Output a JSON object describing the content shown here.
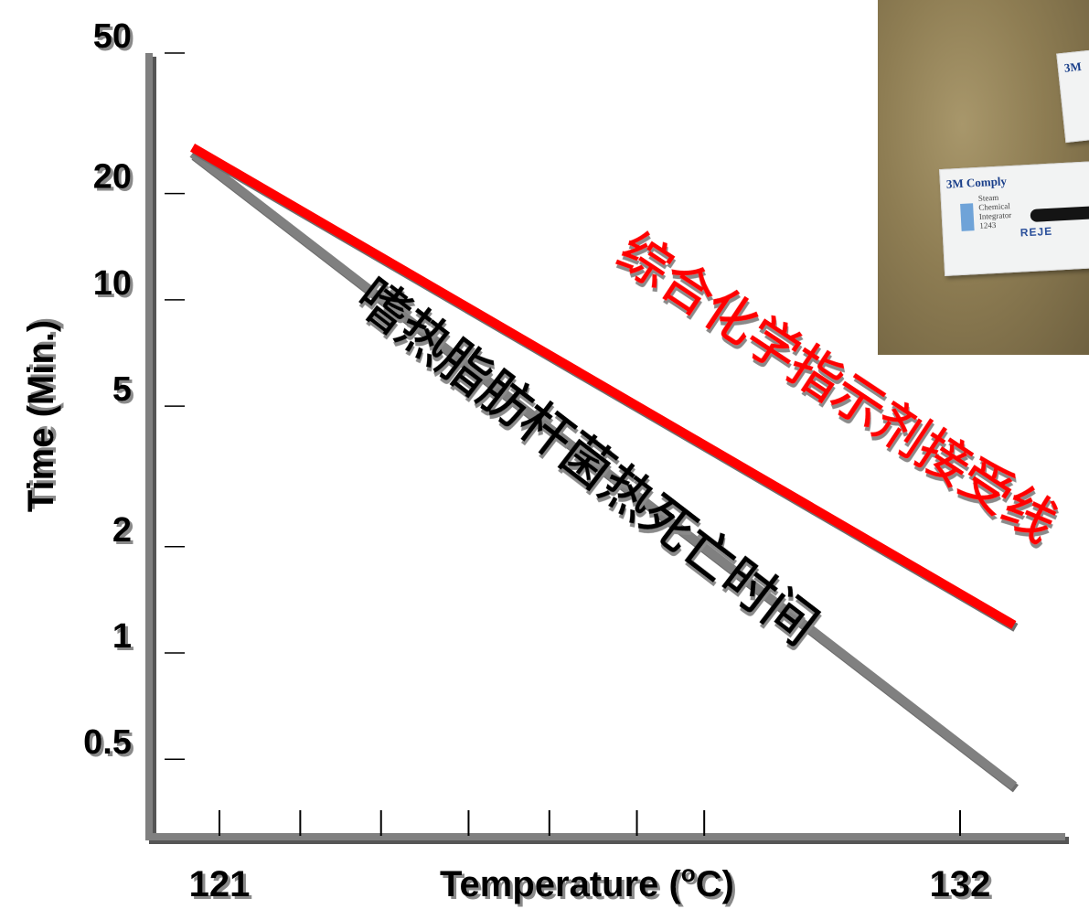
{
  "chart_data": {
    "type": "line",
    "title": "",
    "xlabel": "Temperature (",
    "xlabel_sup": "o",
    "xlabel_end": "C)",
    "ylabel": "Time (Min.)",
    "y_scale": "log",
    "ylim": [
      0.3,
      50
    ],
    "xlim": [
      120.5,
      133
    ],
    "y_tick_labels": [
      "50",
      "20",
      "10",
      "5",
      "2",
      "1",
      "0.5"
    ],
    "y_ticks": [
      50,
      20,
      10,
      5,
      2,
      1,
      0.5
    ],
    "x_tick_labels": [
      "121",
      "132"
    ],
    "x_ticks": [
      121,
      132
    ],
    "x_minor_ticks": [
      121,
      122.2,
      123.4,
      124.7,
      125.9,
      127.2,
      128.2,
      132
    ],
    "series": [
      {
        "name": "综合化学指示剂接受线",
        "color": "#ff0000",
        "x": [
          120.6,
          132.8
        ],
        "y": [
          27,
          1.2
        ]
      },
      {
        "name": "嗜热脂肪杆菌热死亡时间",
        "color": "#808080",
        "x": [
          120.6,
          132.8
        ],
        "y": [
          26,
          0.42
        ]
      }
    ],
    "grid": false,
    "legend": "none"
  },
  "photo": {
    "strip_brand": "3M Comply",
    "strip_lines": "Steam\nChemical\nIntegrator\n1243",
    "strip_result": "REJE",
    "strip_top_brand": "3M"
  },
  "colors": {
    "axis": "#808080",
    "red_line": "#ff0000",
    "gray_line": "#808080",
    "shadow": "#7f7f7f"
  }
}
